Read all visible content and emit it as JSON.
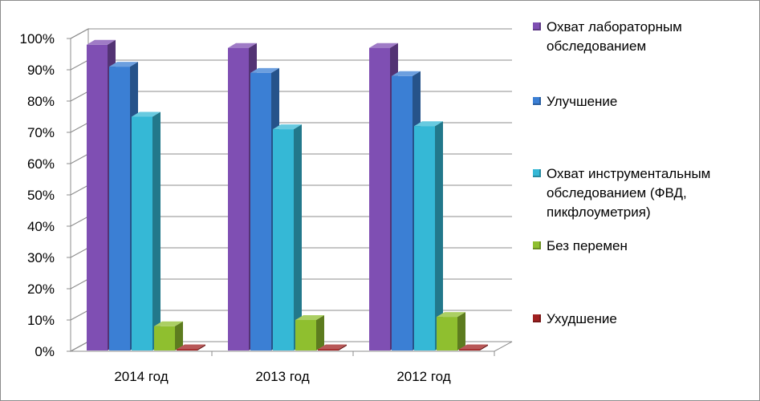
{
  "chart_data": {
    "type": "bar",
    "categories": [
      "2014 год",
      "2013 год",
      "2012 год"
    ],
    "series": [
      {
        "name": "Охват лабораторным обследованием",
        "values": [
          98,
          97,
          97
        ],
        "color": "#7f4fb3"
      },
      {
        "name": "Улучшение",
        "values": [
          91,
          89,
          88
        ],
        "color": "#3b7fd4"
      },
      {
        "name": "Охват инструментальным обследованием (ФВД, пикфлоуметрия)",
        "values": [
          75,
          71,
          72
        ],
        "color": "#35b8d6"
      },
      {
        "name": "Без перемен",
        "values": [
          8,
          10,
          11
        ],
        "color": "#8fbf2f"
      },
      {
        "name": "Ухудшение",
        "values": [
          0,
          0,
          0
        ],
        "color": "#a02020"
      }
    ],
    "yticks": [
      "0%",
      "10%",
      "20%",
      "30%",
      "40%",
      "50%",
      "60%",
      "70%",
      "80%",
      "90%",
      "100%"
    ],
    "ylim": [
      0,
      100
    ],
    "grid": true,
    "legend_position": "right",
    "title": "",
    "xlabel": "",
    "ylabel": ""
  }
}
